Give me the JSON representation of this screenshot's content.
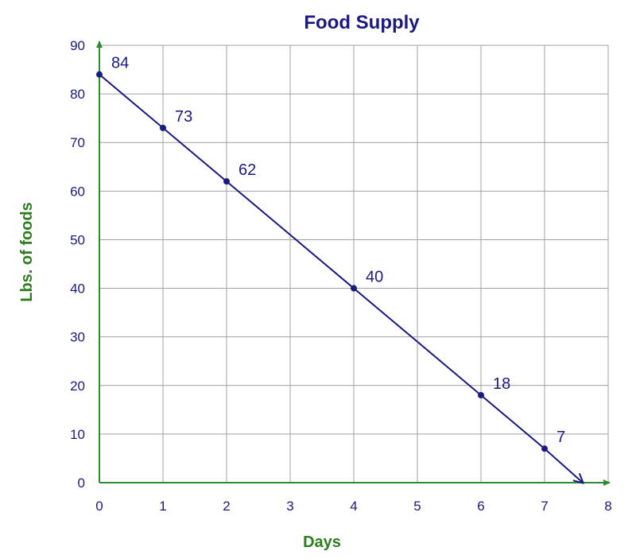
{
  "chart_data": {
    "type": "line",
    "title": "Food Supply",
    "xlabel": "Days",
    "ylabel": "Lbs. of foods",
    "xlim": [
      0,
      8
    ],
    "ylim": [
      0,
      90
    ],
    "xticks": [
      "0",
      "1",
      "2",
      "3",
      "4",
      "5",
      "6",
      "7",
      "8"
    ],
    "yticks": [
      "0",
      "10",
      "20",
      "30",
      "40",
      "50",
      "60",
      "70",
      "80",
      "90"
    ],
    "grid": true,
    "legend": "none",
    "series": [
      {
        "x": [
          0,
          1,
          2,
          4,
          6,
          7
        ],
        "y": [
          84,
          73,
          62,
          40,
          18,
          7
        ],
        "labels": [
          "84",
          "73",
          "62",
          "40",
          "18",
          "7"
        ],
        "line_extends_to": {
          "x": 7.6,
          "y": 0
        }
      }
    ],
    "colors": {
      "title": "#1a1a80",
      "series": "#1a1a80",
      "axis": "#2e8b2e",
      "axis_title": "#2e7d1e",
      "tick_text": "#1a1a80",
      "grid": "#a0a0a0"
    }
  }
}
